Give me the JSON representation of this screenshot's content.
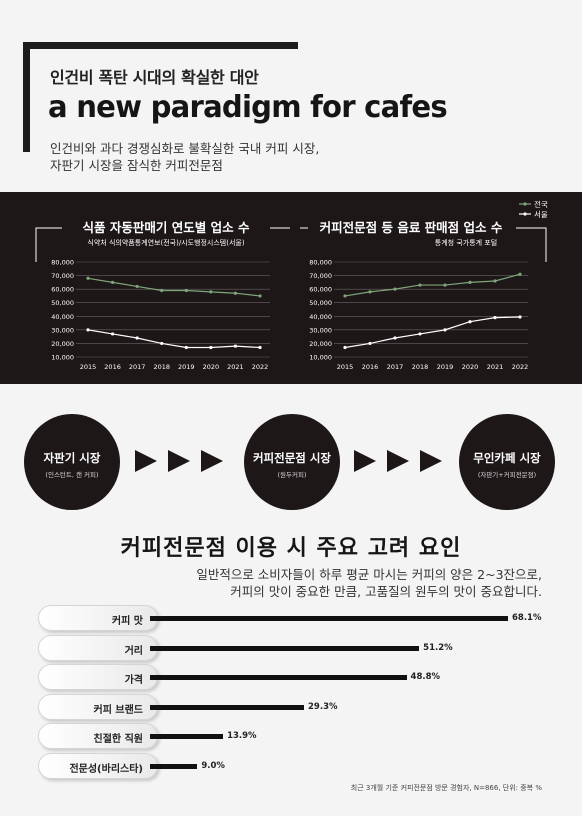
{
  "header": {
    "subtitle": "인건비 폭탄 시대의 확실한 대안",
    "title": "a new paradigm for cafes",
    "desc_line1": "인건비와 과다 경쟁심화로 불확실한 국내 커피 시장,",
    "desc_line2": "자판기 시장을 잠식한 커피전문점"
  },
  "legend": {
    "national": "전국",
    "seoul": "서울"
  },
  "colors": {
    "national": "#7fa67a",
    "seoul": "#ffffff",
    "panel": "#1d1718",
    "bar": "#111111"
  },
  "flow": [
    {
      "title": "자판기 시장",
      "note": "(인스턴트, 캔 커피)"
    },
    {
      "title": "커피전문점 시장",
      "note": "(원두커피)"
    },
    {
      "title": "무인카페 시장",
      "note": "(자판기+커피전문점)"
    }
  ],
  "section2": {
    "title": "커피전문점 이용 시 주요 고려 요인",
    "desc_line1": "일반적으로 소비자들이 하루 평균 마시는 커피의 양은 2~3잔으로,",
    "desc_line2": "커피의 맛이 중요한 만큼, 고품질의 원두의 맛이 중요합니다.",
    "footnote": "최근 3개월 기준 커피전문점 방문 경험자, N=866, 단위: 중복 %"
  },
  "chart_data": [
    {
      "type": "line",
      "title": "식품 자동판매기 연도별 업소 수",
      "subtitle": "식약처 식의약품통계연보(전국)/시도행정시스템(서울)",
      "x": [
        "2015",
        "2016",
        "2017",
        "2018",
        "2019",
        "2020",
        "2021",
        "2022"
      ],
      "y_ticks": [
        "10,000",
        "20,000",
        "30,000",
        "40,000",
        "50,000",
        "60,000",
        "70,000",
        "80,000"
      ],
      "ylim": [
        10000,
        80000
      ],
      "series": [
        {
          "name": "전국",
          "values": [
            68000,
            65000,
            62000,
            59000,
            59000,
            58000,
            57000,
            55000
          ]
        },
        {
          "name": "서울",
          "values": [
            30000,
            27000,
            24000,
            20000,
            17000,
            17000,
            18000,
            17000
          ]
        }
      ]
    },
    {
      "type": "line",
      "title": "커피전문점 등 음료 판매점 업소 수",
      "subtitle": "통계청 국가통계 포털",
      "x": [
        "2015",
        "2016",
        "2017",
        "2018",
        "2019",
        "2020",
        "2021",
        "2022"
      ],
      "y_ticks": [
        "10,000",
        "20,000",
        "30,000",
        "40,000",
        "50,000",
        "60,000",
        "70,000",
        "80,000"
      ],
      "ylim": [
        10000,
        80000
      ],
      "series": [
        {
          "name": "전국",
          "values": [
            55000,
            58000,
            60000,
            63000,
            63000,
            65000,
            66000,
            71000
          ]
        },
        {
          "name": "서울",
          "values": [
            17000,
            20000,
            24000,
            27000,
            30000,
            36000,
            39000,
            39500
          ]
        }
      ]
    },
    {
      "type": "bar",
      "orientation": "horizontal",
      "categories": [
        "커피 맛",
        "거리",
        "가격",
        "커피 브랜드",
        "친절한 직원",
        "전문성(바리스타)"
      ],
      "values": [
        68.1,
        51.2,
        48.8,
        29.3,
        13.9,
        9.0
      ],
      "labels": [
        "68.1%",
        "51.2%",
        "48.8%",
        "29.3%",
        "13.9%",
        "9.0%"
      ]
    }
  ]
}
